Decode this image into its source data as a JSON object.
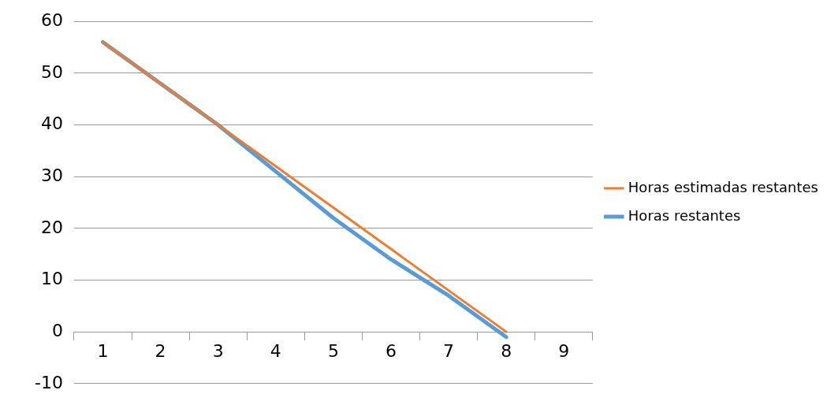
{
  "chart_data": {
    "type": "line",
    "categories": [
      "1",
      "2",
      "3",
      "4",
      "5",
      "6",
      "7",
      "8",
      "9"
    ],
    "series": [
      {
        "name": "Horas restantes",
        "color": "#5b9bd5",
        "values": [
          56,
          48,
          40,
          31,
          22,
          14,
          7,
          -1,
          null
        ]
      },
      {
        "name": "Horas estimadas restantes",
        "color": "#ed7d31",
        "values": [
          56,
          48,
          40,
          32,
          24,
          16,
          8,
          0,
          null
        ]
      }
    ],
    "ylim": [
      -10,
      60
    ],
    "yticks": [
      -10,
      0,
      10,
      20,
      30,
      40,
      50,
      60
    ],
    "grid": "y",
    "legend": "right",
    "marker": "none"
  }
}
